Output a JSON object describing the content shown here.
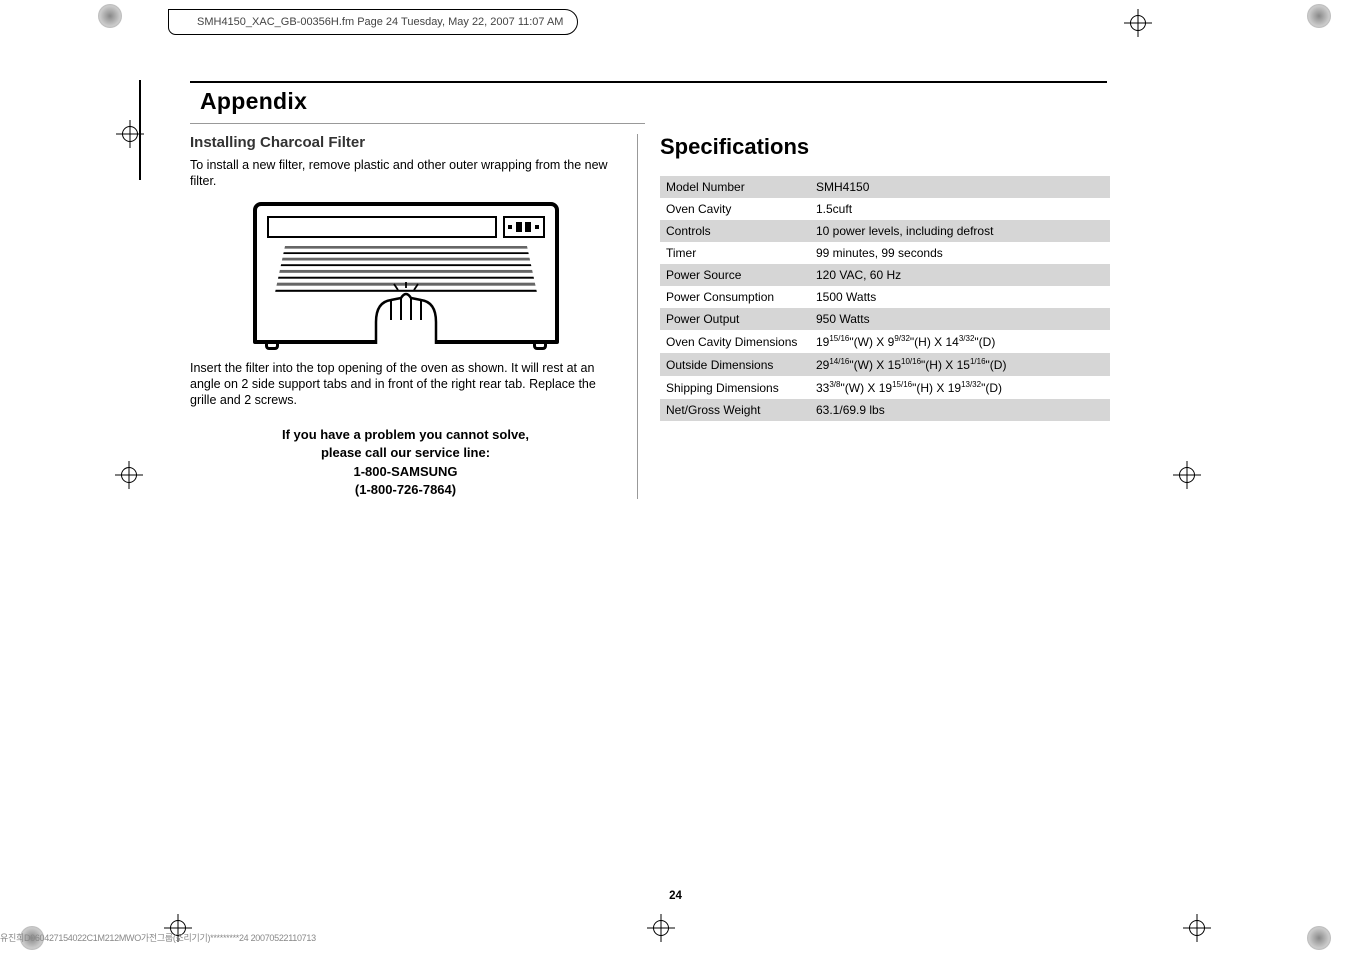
{
  "header": {
    "banner_text": "SMH4150_XAC_GB-00356H.fm  Page 24  Tuesday, May 22, 2007  11:07 AM"
  },
  "appendix": {
    "title": "Appendix"
  },
  "left_column": {
    "heading": "Installing Charcoal Filter",
    "intro": "To install a new filter, remove plastic and other outer wrapping from the new filter.",
    "after_image": "Insert the filter into the top opening of the oven as shown. It will rest at an angle on 2 side support tabs and in front of the right rear tab. Replace the grille and 2 screws.",
    "callout_line1": "If you have a problem you cannot solve,",
    "callout_line2": "please call our service line:",
    "callout_line3": "1-800-SAMSUNG",
    "callout_line4": "(1-800-726-7864)"
  },
  "right_column": {
    "heading": "Specifications",
    "table_rows": [
      {
        "label": "Model Number",
        "value_html": "SMH4150"
      },
      {
        "label": "Oven Cavity",
        "value_html": "1.5cuft"
      },
      {
        "label": "Controls",
        "value_html": "10 power levels, including defrost"
      },
      {
        "label": "Timer",
        "value_html": "99 minutes, 99 seconds"
      },
      {
        "label": "Power Source",
        "value_html": "120 VAC, 60 Hz"
      },
      {
        "label": "Power Consumption",
        "value_html": "1500 Watts"
      },
      {
        "label": "Power Output",
        "value_html": "950 Watts"
      },
      {
        "label": "Oven Cavity Dimensions",
        "value_html": "19<span class=\"sup\">15/16</span>\"(W) X 9<span class=\"sup\">9/32</span>\"(H) X 14<span class=\"sup\">3/32</span>\"(D)"
      },
      {
        "label": "Outside Dimensions",
        "value_html": "29<span class=\"sup\">14/16</span>\"(W) X 15<span class=\"sup\">10/16</span>\"(H) X 15<span class=\"sup\">1/16</span>\"(D)"
      },
      {
        "label": "Shipping Dimensions",
        "value_html": "33<span class=\"sup\">3/8</span>\"(W) X 19<span class=\"sup\">15/16</span>\"(H) X 19<span class=\"sup\">13/32</span>\"(D)"
      },
      {
        "label": "Net/Gross Weight",
        "value_html": "63.1/69.9 lbs"
      }
    ]
  },
  "footer": {
    "page_number": "24",
    "imprint": "유진희D060427154022C1M212MWO가전그룹(조리기기)*********24 20070522110713"
  },
  "colors": {
    "background": "#ffffff",
    "text": "#000000",
    "table_row_alt": "#d6d6d6",
    "rule": "#000000"
  }
}
